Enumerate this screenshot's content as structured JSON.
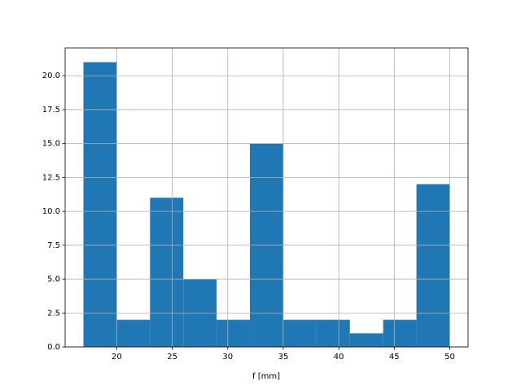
{
  "chart_data": {
    "type": "histogram",
    "xlabel": "f [mm]",
    "bins": [
      17,
      20,
      23,
      26,
      29,
      32,
      35,
      38,
      41,
      44,
      47,
      50
    ],
    "values": [
      21,
      2,
      11,
      5,
      2,
      15,
      2,
      2,
      1,
      2,
      12
    ],
    "color": "#1f77b4",
    "xlim": [
      15.35,
      51.65
    ],
    "xticks": [
      20,
      25,
      30,
      35,
      40,
      45,
      50
    ],
    "ylim": [
      0,
      22.05
    ],
    "yticks": [
      {
        "value": 0,
        "label": "0.0"
      },
      {
        "value": 2.5,
        "label": "2.5"
      },
      {
        "value": 5,
        "label": "5.0"
      },
      {
        "value": 7.5,
        "label": "7.5"
      },
      {
        "value": 10,
        "label": "10.0"
      },
      {
        "value": 12.5,
        "label": "12.5"
      },
      {
        "value": 15,
        "label": "15.0"
      },
      {
        "value": 17.5,
        "label": "17.5"
      },
      {
        "value": 20,
        "label": "20.0"
      }
    ],
    "grid": true
  }
}
